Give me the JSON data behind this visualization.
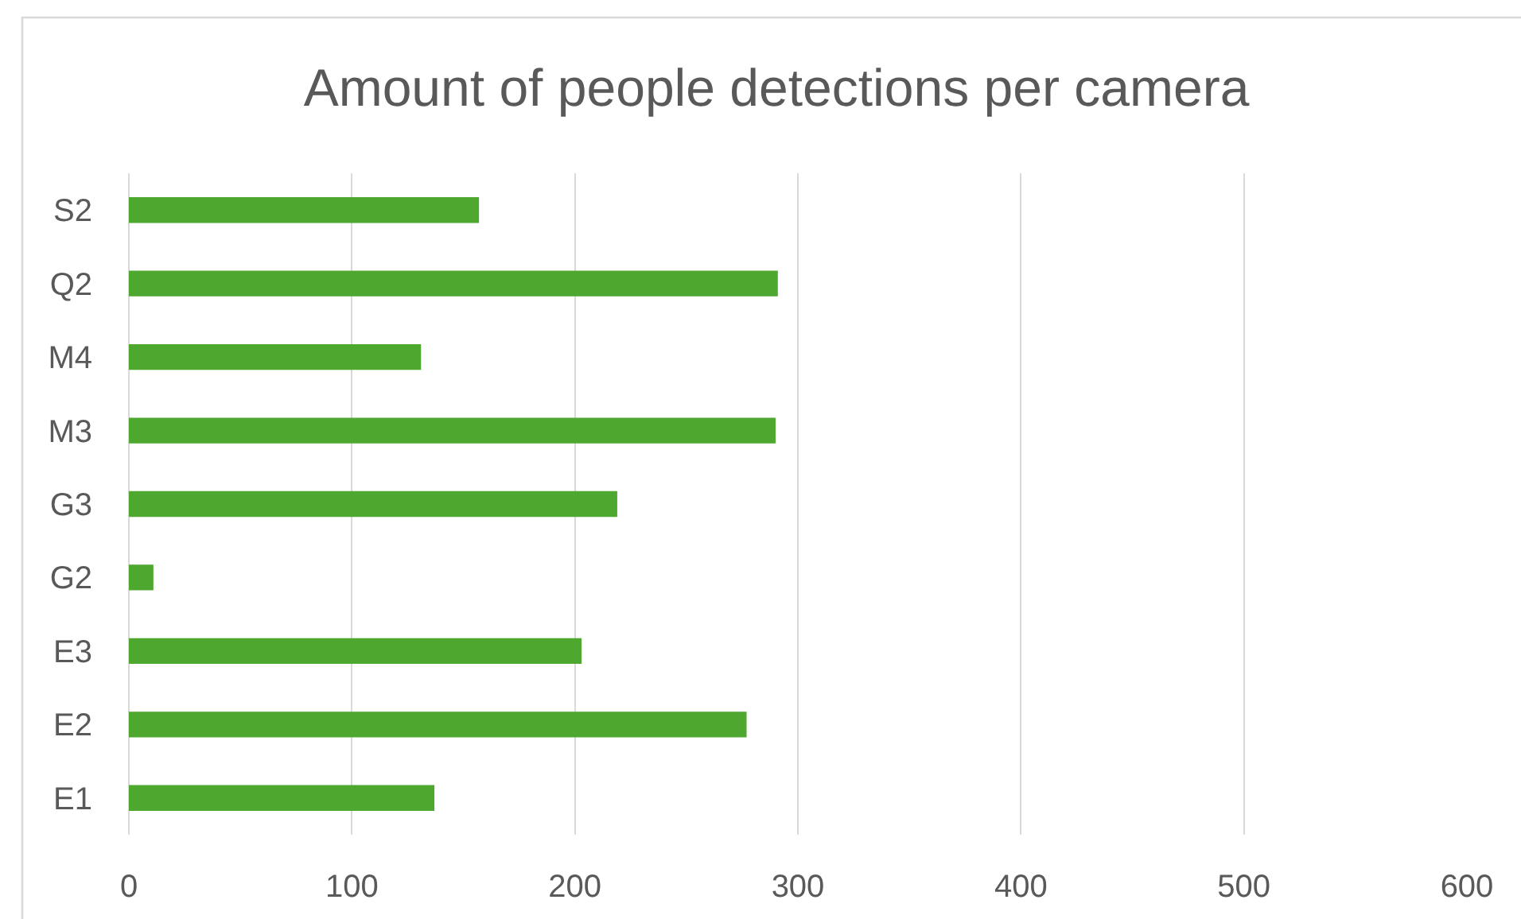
{
  "chart_data": {
    "type": "bar",
    "orientation": "horizontal",
    "title": "Amount of people detections per camera",
    "categories": [
      "S2",
      "Q2",
      "M4",
      "M3",
      "G3",
      "G2",
      "E3",
      "E2",
      "E1"
    ],
    "values": [
      157,
      291,
      131,
      290,
      219,
      11,
      203,
      277,
      137
    ],
    "color": "#4ea72e",
    "xlim": [
      0,
      600
    ],
    "xticks": [
      0,
      100,
      200,
      300,
      400,
      500,
      600
    ],
    "grid": "x"
  }
}
